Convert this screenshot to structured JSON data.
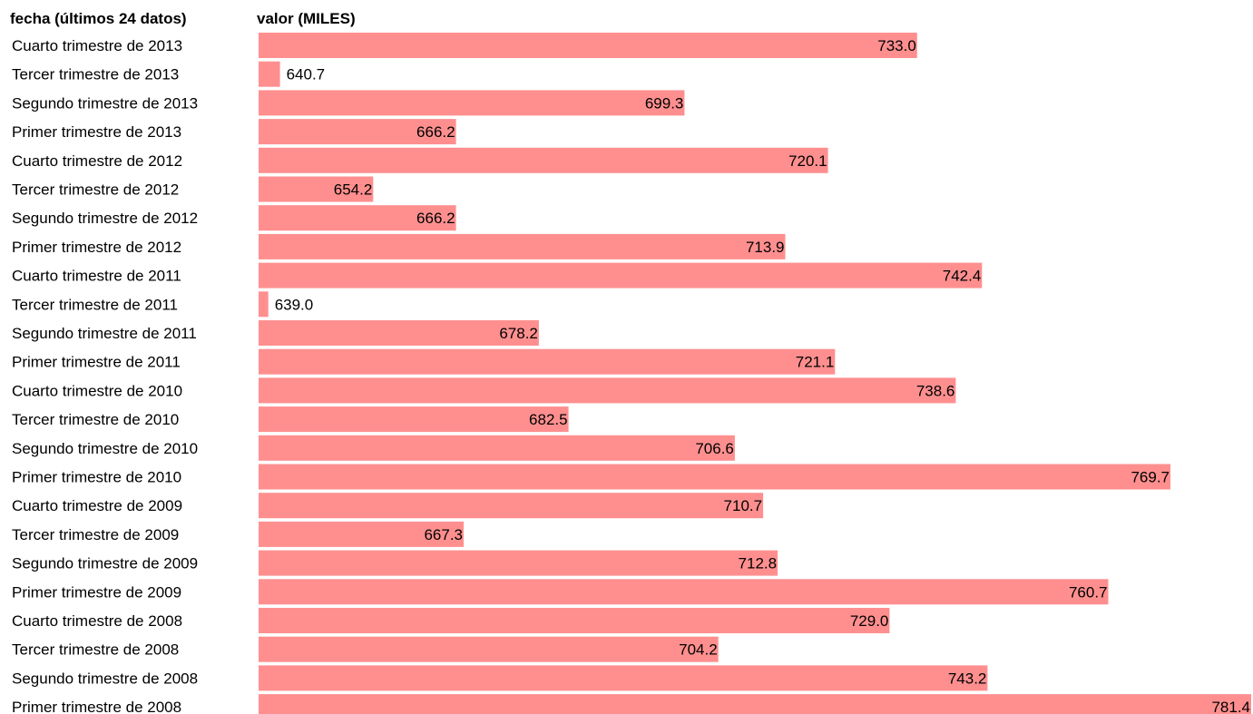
{
  "chart_data": {
    "type": "bar",
    "orientation": "horizontal",
    "category_header": "fecha (últimos 24 datos)",
    "value_header": "valor (MILES)",
    "bar_color": "#ff8f8f",
    "categories": [
      "Cuarto trimestre de 2013",
      "Tercer trimestre de 2013",
      "Segundo trimestre de 2013",
      "Primer trimestre de 2013",
      "Cuarto trimestre de 2012",
      "Tercer trimestre de 2012",
      "Segundo trimestre de 2012",
      "Primer trimestre de 2012",
      "Cuarto trimestre de 2011",
      "Tercer trimestre de 2011",
      "Segundo trimestre de 2011",
      "Primer trimestre de 2011",
      "Cuarto trimestre de 2010",
      "Tercer trimestre de 2010",
      "Segundo trimestre de 2010",
      "Primer trimestre de 2010",
      "Cuarto trimestre de 2009",
      "Tercer trimestre de 2009",
      "Segundo trimestre de 2009",
      "Primer trimestre de 2009",
      "Cuarto trimestre de 2008",
      "Tercer trimestre de 2008",
      "Segundo trimestre de 2008",
      "Primer trimestre de 2008"
    ],
    "values": [
      733.0,
      640.7,
      699.3,
      666.2,
      720.1,
      654.2,
      666.2,
      713.9,
      742.4,
      639.0,
      678.2,
      721.1,
      738.6,
      682.5,
      706.6,
      769.7,
      710.7,
      667.3,
      712.8,
      760.7,
      729.0,
      704.2,
      743.2,
      781.4
    ],
    "value_labels": [
      "733.0",
      "640.7",
      "699.3",
      "666.2",
      "720.1",
      "654.2",
      "666.2",
      "713.9",
      "742.4",
      "639.0",
      "678.2",
      "721.1",
      "738.6",
      "682.5",
      "706.6",
      "769.7",
      "710.7",
      "667.3",
      "712.8",
      "760.7",
      "729.0",
      "704.2",
      "743.2",
      "781.4"
    ],
    "xlim": [
      637.6,
      781.4
    ],
    "grid": false,
    "legend": "none"
  }
}
